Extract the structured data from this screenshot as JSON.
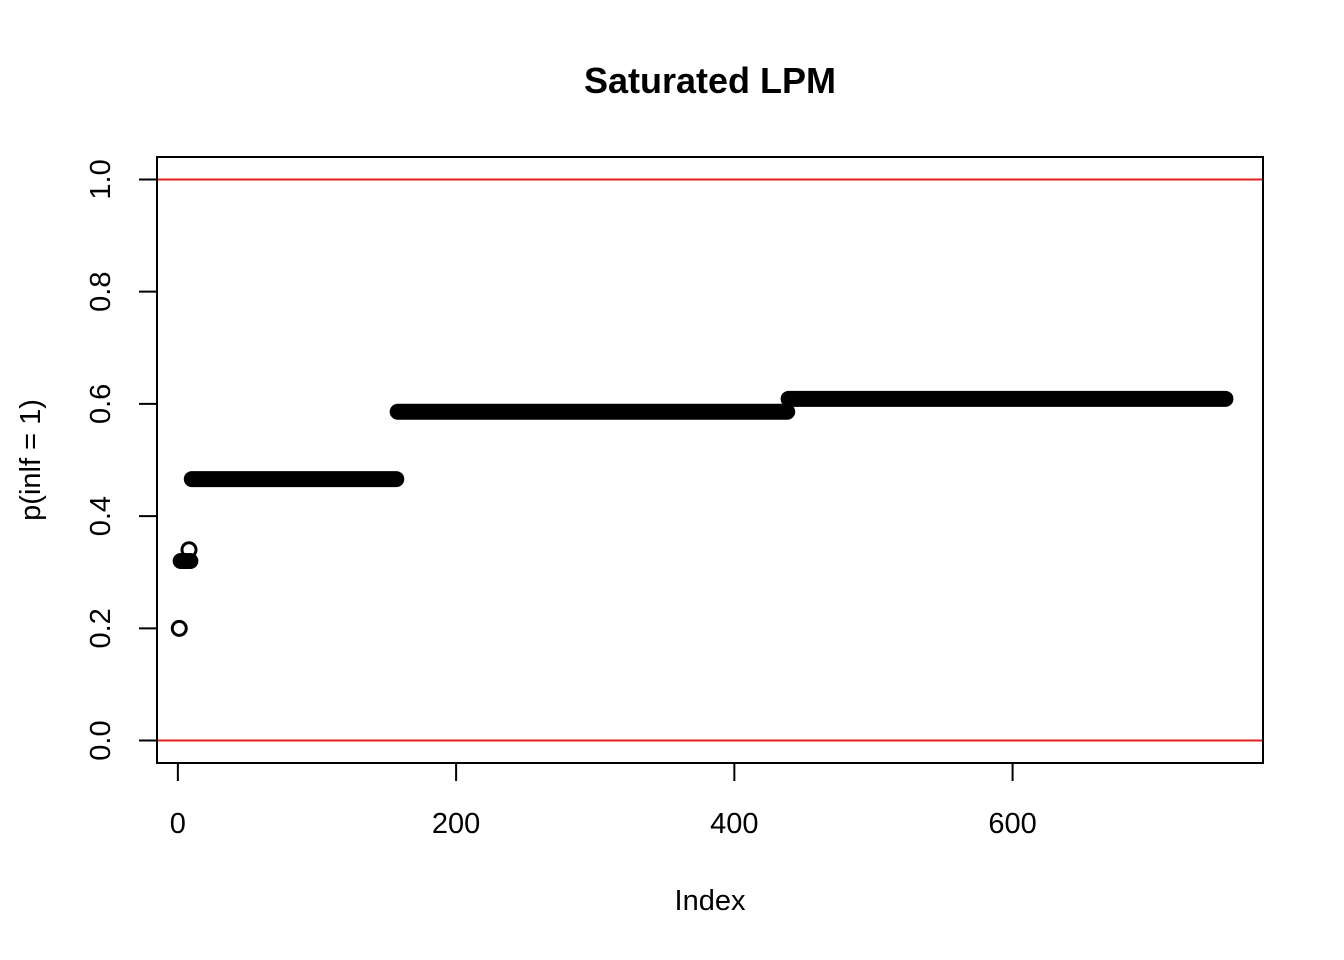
{
  "chart_data": {
    "type": "scatter",
    "title": "Saturated LPM",
    "xlabel": "Index",
    "ylabel": "p(inlf = 1)",
    "xlim": [
      -15,
      780
    ],
    "ylim": [
      -0.04,
      1.04
    ],
    "x_ticks": [
      0,
      200,
      400,
      600
    ],
    "y_ticks": [
      0.0,
      0.2,
      0.4,
      0.6,
      0.8,
      1.0
    ],
    "x_tick_labels": [
      "0",
      "200",
      "400",
      "600"
    ],
    "y_tick_labels": [
      "0.0",
      "0.2",
      "0.4",
      "0.6",
      "0.8",
      "1.0"
    ],
    "grid": false,
    "marker": "open-circle",
    "point_color": "#000000",
    "reference_lines": [
      {
        "y": 0.0,
        "color": "#DF2020"
      },
      {
        "y": 1.0,
        "color": "#DF2020"
      }
    ],
    "points": [
      {
        "x": 1,
        "y": 0.2
      },
      {
        "x": 8,
        "y": 0.34
      }
    ],
    "segments": [
      {
        "x_start": 2,
        "x_end": 9,
        "y": 0.32
      },
      {
        "x_start": 10,
        "x_end": 157,
        "y": 0.466
      },
      {
        "x_start": 158,
        "x_end": 438,
        "y": 0.586
      },
      {
        "x_start": 439,
        "x_end": 753,
        "y": 0.609
      }
    ]
  }
}
